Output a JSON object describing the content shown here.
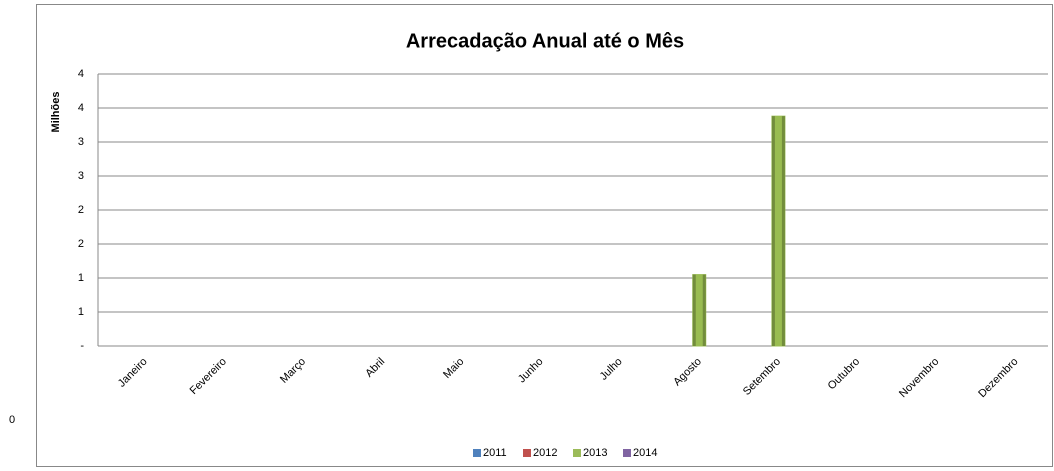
{
  "chart_data": {
    "type": "bar",
    "title": "Arrecadação Anual até o Mês",
    "y_label": "Milhões",
    "side_label": "0",
    "categories": [
      "Janeiro",
      "Fevereiro",
      "Março",
      "Abril",
      "Maio",
      "Junho",
      "Julho",
      "Agosto",
      "Setembro",
      "Outubro",
      "Novembro",
      "Dezembro"
    ],
    "series": [
      {
        "name": "2011",
        "color": "#4f81bd",
        "values": [
          null,
          null,
          null,
          null,
          null,
          null,
          null,
          null,
          null,
          null,
          null,
          null
        ]
      },
      {
        "name": "2012",
        "color": "#c0504d",
        "values": [
          null,
          null,
          null,
          null,
          null,
          null,
          null,
          null,
          null,
          null,
          null,
          null
        ]
      },
      {
        "name": "2013",
        "color": "#9bbb59",
        "values": [
          null,
          null,
          null,
          null,
          null,
          null,
          null,
          1.05,
          3.38,
          null,
          null,
          null
        ]
      },
      {
        "name": "2014",
        "color": "#8064a2",
        "values": [
          null,
          null,
          null,
          null,
          null,
          null,
          null,
          null,
          null,
          null,
          null,
          null
        ]
      }
    ],
    "ylim": [
      0,
      4
    ],
    "yticks": [
      {
        "value": 0,
        "label": "-"
      },
      {
        "value": 0.5,
        "label": "1"
      },
      {
        "value": 1,
        "label": "1"
      },
      {
        "value": 1.5,
        "label": "2"
      },
      {
        "value": 2,
        "label": "2"
      },
      {
        "value": 2.5,
        "label": "3"
      },
      {
        "value": 3,
        "label": "3"
      },
      {
        "value": 3.5,
        "label": "4"
      },
      {
        "value": 4,
        "label": "4"
      }
    ],
    "grid": true,
    "legend": "bottom"
  }
}
